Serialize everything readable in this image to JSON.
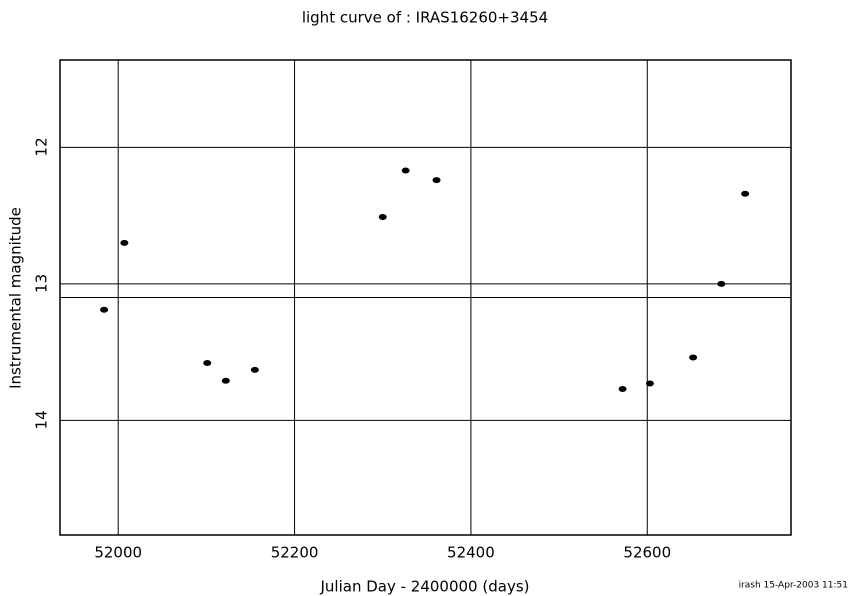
{
  "chart_data": {
    "type": "scatter",
    "title": "light curve of : IRAS16260+3454",
    "x_label": "Julian Day - 2400000 (days)",
    "y_label": "Instrumental magnitude",
    "footer": "irash 15-Apr-2003 11:51",
    "x": [
      51984,
      52007,
      52101,
      52122,
      52155,
      52300,
      52326,
      52361,
      52572,
      52603,
      52652,
      52684,
      52711
    ],
    "values": [
      13.19,
      12.7,
      13.58,
      13.71,
      13.63,
      12.51,
      12.17,
      12.24,
      13.77,
      13.73,
      13.54,
      13.0,
      12.34
    ],
    "color": "#000000",
    "xlim": [
      51934,
      52763
    ],
    "xticks": [
      52000,
      52200,
      52400,
      52600
    ],
    "ylim": [
      11.36,
      14.84
    ],
    "yticks": [
      12,
      13,
      14
    ],
    "y_inverted": true,
    "reference_lines": [
      13.1
    ],
    "grid": true
  }
}
